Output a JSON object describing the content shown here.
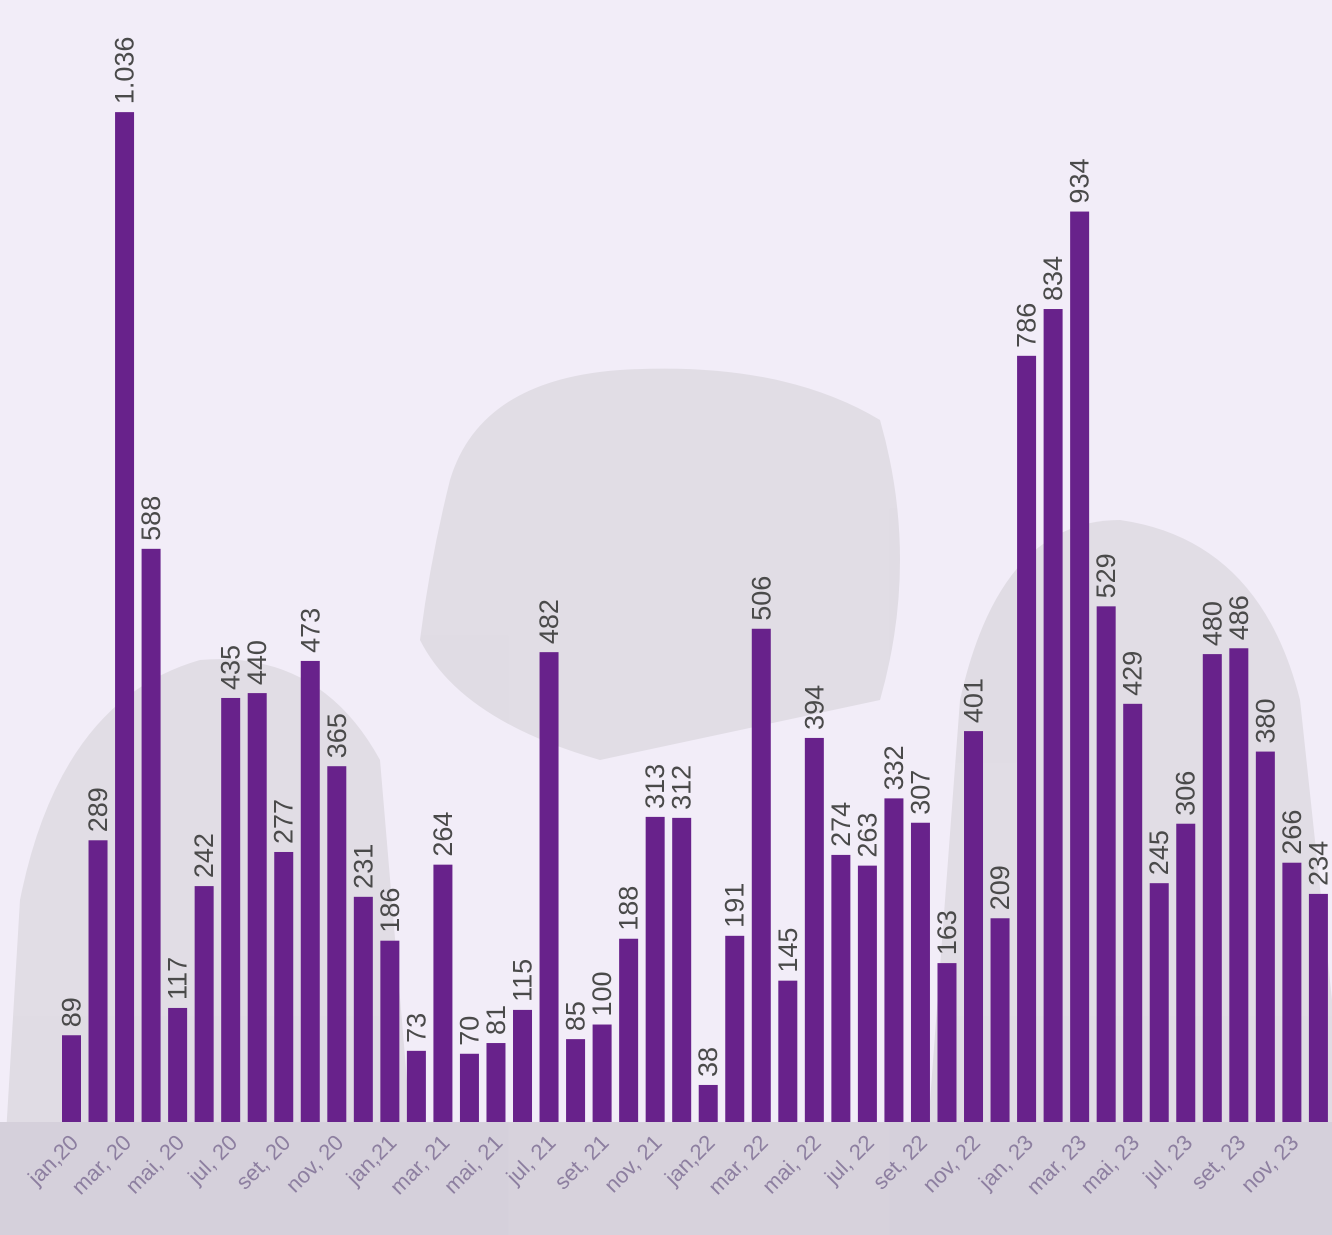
{
  "chart_data": {
    "type": "bar",
    "categories": [
      "jan,20",
      null,
      "mar, 20",
      null,
      "mai, 20",
      null,
      "jul, 20",
      null,
      "set, 20",
      null,
      "nov, 20",
      null,
      "jan,21",
      null,
      "mar, 21",
      null,
      "mai, 21",
      null,
      "jul, 21",
      null,
      "set, 21",
      null,
      "nov, 21",
      null,
      "jan,22",
      null,
      "mar, 22",
      null,
      "mai, 22",
      null,
      "jul, 22",
      null,
      "set, 22",
      null,
      "nov, 22",
      null,
      "jan, 23",
      null,
      "mar, 23",
      null,
      "mai, 23",
      null,
      "jul, 23",
      null,
      "set, 23",
      null,
      "nov, 23",
      null
    ],
    "values": [
      89,
      289,
      1036,
      588,
      117,
      242,
      435,
      440,
      277,
      473,
      365,
      231,
      186,
      73,
      264,
      70,
      81,
      115,
      482,
      85,
      100,
      188,
      313,
      312,
      38,
      191,
      506,
      145,
      394,
      274,
      263,
      332,
      307,
      163,
      401,
      209,
      786,
      834,
      934,
      529,
      429,
      245,
      306,
      480,
      486,
      380,
      266,
      234
    ],
    "value_labels": [
      "89",
      "289",
      "1.036",
      "588",
      "117",
      "242",
      "435",
      "440",
      "277",
      "473",
      "365",
      "231",
      "186",
      "73",
      "264",
      "70",
      "81",
      "115",
      "482",
      "85",
      "100",
      "188",
      "313",
      "312",
      "38",
      "191",
      "506",
      "145",
      "394",
      "274",
      "263",
      "332",
      "307",
      "163",
      "401",
      "209",
      "786",
      "834",
      "934",
      "529",
      "429",
      "245",
      "306",
      "480",
      "486",
      "380",
      "266",
      "234"
    ],
    "color": "#68228b",
    "ylim": [
      0,
      1150
    ]
  }
}
